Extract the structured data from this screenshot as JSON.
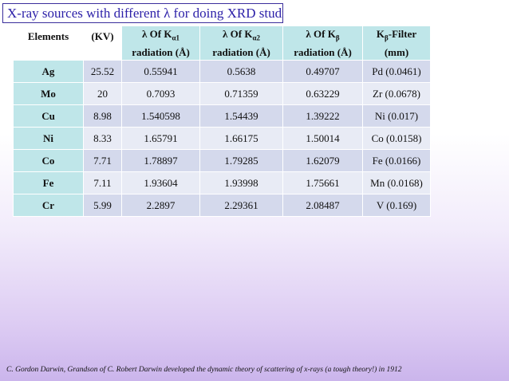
{
  "title": "X-ray sources with different λ for doing XRD studies",
  "table": {
    "headers": {
      "elements": "Elements",
      "kv": "(KV)",
      "ka1_pre": "λ Of K",
      "ka1_sub": "α1",
      "ka1_post": "radiation (Å)",
      "ka2_pre": "λ Of K",
      "ka2_sub": "α2",
      "ka2_post": "radiation (Å)",
      "kb_pre": "λ Of K",
      "kb_sub": "β",
      "kb_post": "radiation (Å)",
      "filter_pre": "K",
      "filter_sub": "β",
      "filter_mid": "-Filter",
      "filter_post": "(mm)"
    },
    "rows": [
      {
        "element": "Ag",
        "kv": "25.52",
        "ka1": "0.55941",
        "ka2": "0.5638",
        "kb": "0.49707",
        "filter": "Pd (0.0461)"
      },
      {
        "element": "Mo",
        "kv": "20",
        "ka1": "0.7093",
        "ka2": "0.71359",
        "kb": "0.63229",
        "filter": "Zr (0.0678)"
      },
      {
        "element": "Cu",
        "kv": "8.98",
        "ka1": "1.540598",
        "ka2": "1.54439",
        "kb": "1.39222",
        "filter": "Ni (0.017)"
      },
      {
        "element": "Ni",
        "kv": "8.33",
        "ka1": "1.65791",
        "ka2": "1.66175",
        "kb": "1.50014",
        "filter": "Co (0.0158)"
      },
      {
        "element": "Co",
        "kv": "7.71",
        "ka1": "1.78897",
        "ka2": "1.79285",
        "kb": "1.62079",
        "filter": "Fe (0.0166)"
      },
      {
        "element": "Fe",
        "kv": "7.11",
        "ka1": "1.93604",
        "ka2": "1.93998",
        "kb": "1.75661",
        "filter": "Mn (0.0168)"
      },
      {
        "element": "Cr",
        "kv": "5.99",
        "ka1": "2.2897",
        "ka2": "2.29361",
        "kb": "2.08487",
        "filter": "V (0.169)"
      }
    ]
  },
  "footnote": "C. Gordon Darwin, Grandson of C. Robert Darwin developed the dynamic theory of scattering of x-rays (a tough theory!) in 1912",
  "colors": {
    "title_text": "#2b1fa8",
    "header_cell": "#bfe6e9",
    "row_odd": "#d4d9ec",
    "row_even": "#e8ebf5",
    "background_bottom": "#cbb5ec"
  }
}
